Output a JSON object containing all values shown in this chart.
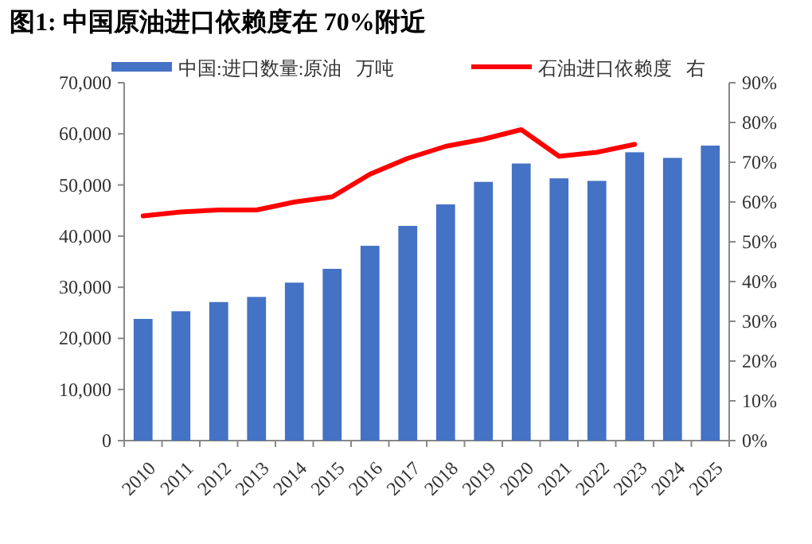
{
  "chart_data": {
    "type": "bar",
    "title": "图1:  中国原油进口依赖度在 70%附近",
    "categories": [
      "2010",
      "2011",
      "2012",
      "2013",
      "2014",
      "2015",
      "2016",
      "2017",
      "2018",
      "2019",
      "2020",
      "2021",
      "2022",
      "2023",
      "2024",
      "2025"
    ],
    "series": [
      {
        "name": "中国:进口数量:原油   万吨",
        "color": "#4472c4",
        "values": [
          23800,
          25300,
          27100,
          28100,
          30900,
          33600,
          38100,
          42000,
          46200,
          50600,
          54200,
          51300,
          50800,
          56400,
          55300,
          57700
        ]
      },
      {
        "name": "石油进口依赖度   右",
        "type": "line",
        "axis": "y2",
        "color": "#ff0000",
        "values": [
          56.5,
          57.5,
          58,
          58,
          60,
          61.3,
          67,
          71,
          74,
          75.8,
          78.2,
          71.5,
          72.5,
          74.5,
          null,
          null
        ]
      }
    ],
    "ylim": [
      0,
      70000
    ],
    "yticks": [
      {
        "value": 0,
        "label": "0"
      },
      {
        "value": 10000,
        "label": "10,000"
      },
      {
        "value": 20000,
        "label": "20,000"
      },
      {
        "value": 30000,
        "label": "30,000"
      },
      {
        "value": 40000,
        "label": "40,000"
      },
      {
        "value": 50000,
        "label": "50,000"
      },
      {
        "value": 60000,
        "label": "60,000"
      },
      {
        "value": 70000,
        "label": "70,000"
      }
    ],
    "y2lim": [
      0,
      90
    ],
    "y2ticks": [
      {
        "value": 0,
        "label": "0%"
      },
      {
        "value": 10,
        "label": "10%"
      },
      {
        "value": 20,
        "label": "20%"
      },
      {
        "value": 30,
        "label": "30%"
      },
      {
        "value": 40,
        "label": "40%"
      },
      {
        "value": 50,
        "label": "50%"
      },
      {
        "value": 60,
        "label": "60%"
      },
      {
        "value": 70,
        "label": "70%"
      },
      {
        "value": 80,
        "label": "80%"
      },
      {
        "value": 90,
        "label": "90%"
      }
    ],
    "legend": "top",
    "grid": false
  }
}
